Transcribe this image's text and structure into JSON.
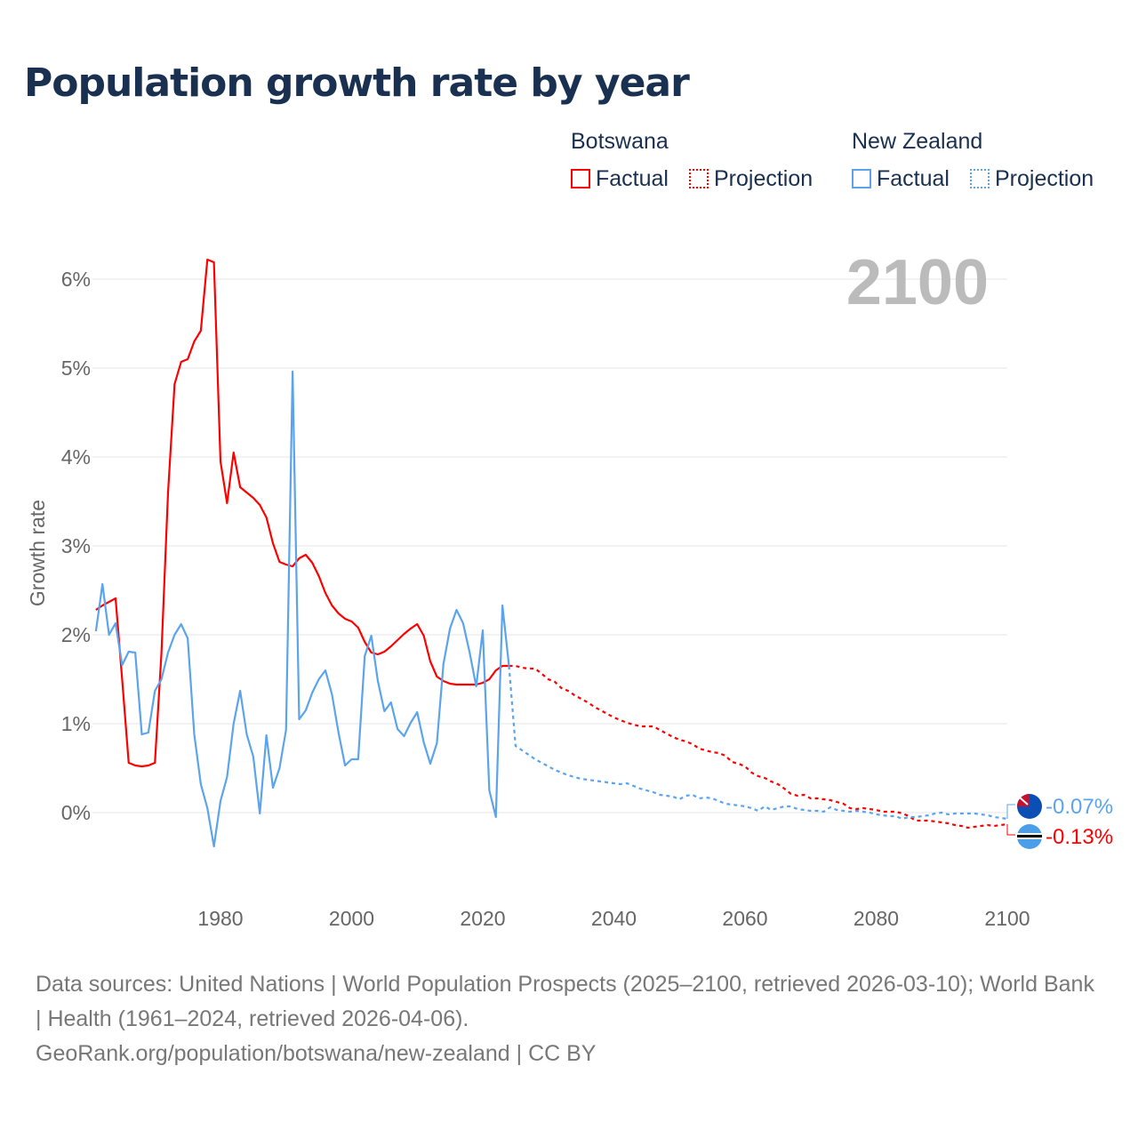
{
  "title": "Population growth rate by year",
  "legend": {
    "groups": [
      {
        "name": "Botswana",
        "factual": "Factual",
        "projection": "Projection",
        "color": "#ff0000"
      },
      {
        "name": "New Zealand",
        "factual": "Factual",
        "projection": "Projection",
        "color": "#5ba4ec"
      }
    ]
  },
  "footer": {
    "sources": "Data sources: United Nations | World Population Prospects (2025–2100, retrieved 2026-03-10); World Bank | Health (1961–2024, retrieved 2026-04-06).",
    "link": "GeoRank.org/population/botswana/new-zealand | CC BY"
  },
  "chart_data": {
    "type": "line",
    "title": "Population growth rate by year",
    "ylabel": "Growth rate",
    "xlabel": "",
    "watermark_year": "2100",
    "xlim": [
      1961,
      2100
    ],
    "ylim": [
      -1,
      6.9
    ],
    "x_ticks": [
      "1980",
      "2000",
      "2020",
      "2040",
      "2060",
      "2080",
      "2100"
    ],
    "y_ticks": [
      "0%",
      "1%",
      "2%",
      "3%",
      "4%",
      "5%",
      "6%"
    ],
    "grid": true,
    "factual_start": 1961,
    "projection_start": 2025,
    "series": [
      {
        "name": "Botswana",
        "color": "#ff0000",
        "end_label": "-0.13%",
        "factual": [
          2.28,
          2.33,
          2.37,
          2.41,
          1.5,
          0.56,
          0.53,
          0.52,
          0.53,
          0.56,
          1.8,
          3.6,
          4.82,
          5.07,
          5.1,
          5.3,
          5.42,
          6.22,
          6.19,
          3.95,
          3.48,
          4.05,
          3.66,
          3.6,
          3.54,
          3.46,
          3.32,
          3.03,
          2.82,
          2.79,
          2.77,
          2.86,
          2.9,
          2.81,
          2.66,
          2.47,
          2.33,
          2.24,
          2.18,
          2.15,
          2.08,
          1.92,
          1.8,
          1.78,
          1.81,
          1.87,
          1.94,
          2.01,
          2.07,
          2.12,
          1.99,
          1.7,
          1.53,
          1.48,
          1.45,
          1.44,
          1.44,
          1.44,
          1.44,
          1.46,
          1.5,
          1.6,
          1.65,
          1.65
        ],
        "projection": [
          1.65,
          1.63,
          1.62,
          1.62,
          1.56,
          1.5,
          1.47,
          1.4,
          1.37,
          1.32,
          1.28,
          1.24,
          1.19,
          1.15,
          1.11,
          1.07,
          1.04,
          1.01,
          0.99,
          0.97,
          0.97,
          0.97,
          0.93,
          0.89,
          0.85,
          0.82,
          0.8,
          0.77,
          0.72,
          0.7,
          0.68,
          0.67,
          0.64,
          0.57,
          0.55,
          0.52,
          0.45,
          0.41,
          0.39,
          0.35,
          0.32,
          0.27,
          0.21,
          0.19,
          0.2,
          0.16,
          0.16,
          0.15,
          0.14,
          0.12,
          0.1,
          0.05,
          0.04,
          0.05,
          0.04,
          0.03,
          0.01,
          0.01,
          0.01,
          -0.01,
          -0.04,
          -0.09,
          -0.09,
          -0.09,
          -0.1,
          -0.11,
          -0.12,
          -0.14,
          -0.15,
          -0.17,
          -0.16,
          -0.15,
          -0.14,
          -0.15,
          -0.14,
          -0.13
        ]
      },
      {
        "name": "New Zealand",
        "color": "#5ba4ec",
        "end_label": "-0.07%",
        "factual": [
          2.04,
          2.57,
          2.0,
          2.13,
          1.66,
          1.81,
          1.8,
          0.88,
          0.9,
          1.37,
          1.5,
          1.8,
          2.0,
          2.12,
          1.96,
          0.88,
          0.32,
          0.05,
          -0.38,
          0.13,
          0.4,
          1.0,
          1.37,
          0.88,
          0.63,
          -0.01,
          0.87,
          0.28,
          0.5,
          0.93,
          4.96,
          1.05,
          1.15,
          1.35,
          1.5,
          1.6,
          1.33,
          0.9,
          0.53,
          0.6,
          0.6,
          1.76,
          1.99,
          1.48,
          1.14,
          1.24,
          0.94,
          0.86,
          1.01,
          1.13,
          0.79,
          0.55,
          0.78,
          1.67,
          2.07,
          2.28,
          2.13,
          1.8,
          1.42,
          2.05,
          0.25,
          -0.05,
          2.33,
          1.65
        ],
        "projection": [
          0.75,
          0.7,
          0.65,
          0.6,
          0.56,
          0.52,
          0.48,
          0.45,
          0.42,
          0.4,
          0.38,
          0.37,
          0.36,
          0.35,
          0.34,
          0.33,
          0.32,
          0.33,
          0.3,
          0.27,
          0.25,
          0.23,
          0.2,
          0.19,
          0.18,
          0.15,
          0.19,
          0.2,
          0.16,
          0.17,
          0.16,
          0.13,
          0.1,
          0.09,
          0.08,
          0.07,
          0.05,
          0.02,
          0.07,
          0.03,
          0.05,
          0.07,
          0.07,
          0.04,
          0.03,
          0.02,
          0.02,
          0.01,
          0.06,
          0.03,
          0.02,
          0.01,
          0.02,
          0.01,
          0.0,
          -0.02,
          -0.03,
          -0.04,
          -0.04,
          -0.07,
          -0.05,
          -0.05,
          -0.04,
          -0.03,
          -0.01,
          0.0,
          -0.02,
          -0.01,
          -0.01,
          -0.01,
          -0.01,
          -0.02,
          -0.03,
          -0.05,
          -0.06,
          -0.07
        ]
      }
    ]
  }
}
